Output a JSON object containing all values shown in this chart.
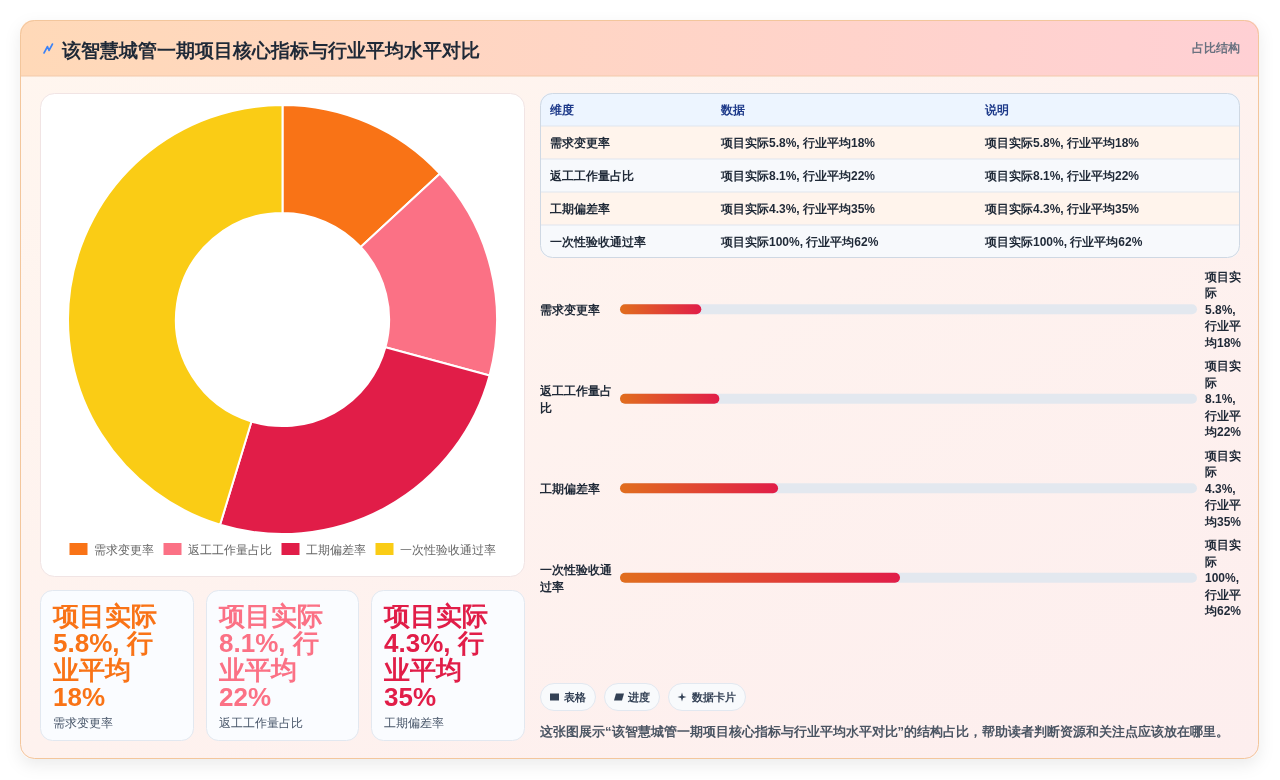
{
  "chart_data": [
    {
      "type": "other",
      "title": "该智慧城管一期项目核心指标与行业平均水平对比",
      "annotations": [
        "占比结构"
      ]
    },
    {
      "type": "donut",
      "categories": [
        "需求变更率",
        "返工工作量占比",
        "工期偏差率",
        "一次性验收通过率"
      ],
      "values": [
        13.1,
        16.1,
        25.5,
        45.3
      ],
      "colors": [
        "#f97316",
        "#fb7185",
        "#e11d48",
        "#facc15"
      ],
      "legend": "bottom"
    },
    {
      "type": "other",
      "title": "项目实际5.8%, 行业平均18%",
      "subtitle": "需求变更率",
      "color": "#f97316"
    },
    {
      "type": "other",
      "title": "项目实际8.1%, 行业平均22%",
      "subtitle": "返工工作量占比",
      "color": "#fb7185"
    },
    {
      "type": "other",
      "title": "项目实际4.3%, 行业平均35%",
      "subtitle": "工期偏差率",
      "color": "#e11d48"
    },
    {
      "type": "other",
      "ylabel": "维度",
      "categories": [
        "数据",
        "说明"
      ],
      "y_categories": [
        "需求变更率",
        "返工工作量占比",
        "工期偏差率",
        "一次性验收通过率"
      ],
      "cell_labels": [
        [
          "项目实际5.8%, 行业平均18%",
          "项目实际5.8%, 行业平均18%"
        ],
        [
          "项目实际8.1%, 行业平均22%",
          "项目实际8.1%, 行业平均22%"
        ],
        [
          "项目实际4.3%, 行业平均35%",
          "项目实际4.3%, 行业平均35%"
        ],
        [
          "项目实际100%, 行业平均62%",
          "项目实际100%, 行业平均62%"
        ]
      ]
    },
    {
      "type": "bar",
      "orientation": "horizontal",
      "categories": [
        "需求变更率",
        "返工工作量占比",
        "工期偏差率",
        "一次性验收通过率"
      ],
      "values": [
        18,
        22,
        35,
        62
      ],
      "value_labels": [
        "项目实际5.8%, 行业平均18%",
        "项目实际8.1%, 行业平均22%",
        "项目实际4.3%, 行业平均35%",
        "项目实际100%, 行业平均62%"
      ],
      "color": "#e11d48"
    },
    {
      "type": "other",
      "annotations": [
        "表格",
        "进度",
        "数据卡片",
        "这张图展示“该智慧城管一期项目核心指标与行业平均水平对比”的结构占比，帮助读者判断资源和关注点应该放在哪里。"
      ]
    }
  ]
}
